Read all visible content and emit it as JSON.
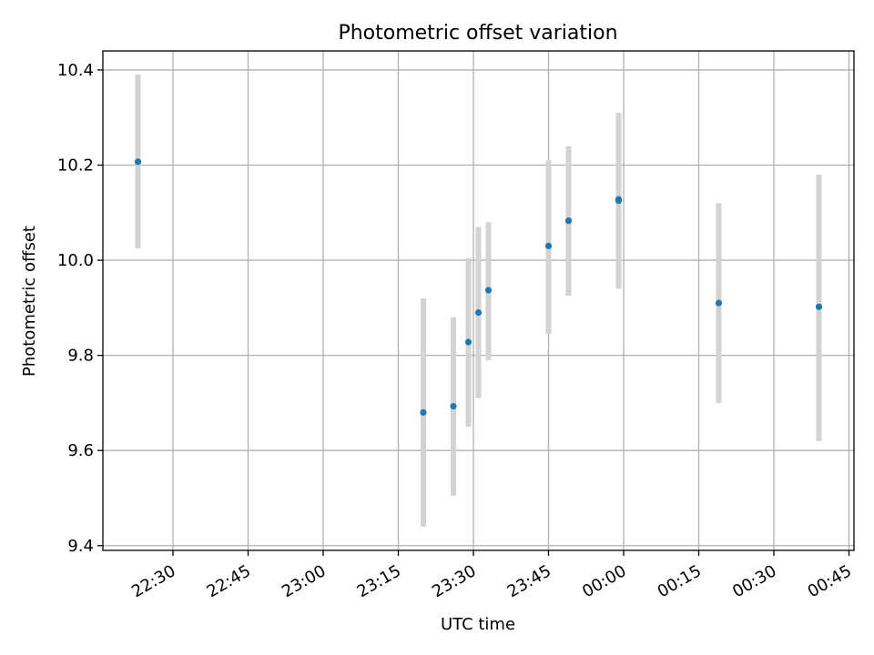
{
  "chart_data": {
    "type": "scatter",
    "title": "Photometric offset variation",
    "xlabel": "UTC time",
    "ylabel": "Photometric offset",
    "grid": true,
    "legend": "none",
    "x_tick_labels": [
      "22:30",
      "22:45",
      "23:00",
      "23:15",
      "23:30",
      "23:45",
      "00:00",
      "00:15",
      "00:30",
      "00:45"
    ],
    "x_ticks": [
      "22:30",
      "22:45",
      "23:00",
      "23:15",
      "23:30",
      "23:45",
      "00:00",
      "00:15",
      "00:30",
      "00:45"
    ],
    "y_tick_labels": [
      "9.4",
      "9.6",
      "9.8",
      "10.0",
      "10.2",
      "10.4"
    ],
    "y_ticks": [
      9.4,
      9.6,
      9.8,
      10.0,
      10.2,
      10.4
    ],
    "xlim": [
      "22:16",
      "00:46"
    ],
    "ylim": [
      9.39,
      10.44
    ],
    "marker_color": "#1f77b4",
    "errorbar_color": "#d3d3d3",
    "points": [
      {
        "x": "22:23",
        "y": 10.207,
        "yerr_low": 10.025,
        "yerr_high": 10.39
      },
      {
        "x": "23:20",
        "y": 9.68,
        "yerr_low": 9.44,
        "yerr_high": 9.92
      },
      {
        "x": "23:26",
        "y": 9.693,
        "yerr_low": 9.505,
        "yerr_high": 9.88
      },
      {
        "x": "23:29",
        "y": 9.828,
        "yerr_low": 9.65,
        "yerr_high": 10.005
      },
      {
        "x": "23:31",
        "y": 9.89,
        "yerr_low": 9.71,
        "yerr_high": 10.07
      },
      {
        "x": "23:33",
        "y": 9.937,
        "yerr_low": 9.79,
        "yerr_high": 10.08
      },
      {
        "x": "23:45",
        "y": 10.03,
        "yerr_low": 9.845,
        "yerr_high": 10.21
      },
      {
        "x": "23:49",
        "y": 10.083,
        "yerr_low": 9.925,
        "yerr_high": 10.24
      },
      {
        "x": "23:59",
        "y": 10.125,
        "yerr_low": 9.94,
        "yerr_high": 10.31
      },
      {
        "x": "23:59",
        "y": 10.128,
        "yerr_low": 9.94,
        "yerr_high": 10.31
      },
      {
        "x": "00:19",
        "y": 9.91,
        "yerr_low": 9.7,
        "yerr_high": 10.12
      },
      {
        "x": "00:39",
        "y": 9.902,
        "yerr_low": 9.62,
        "yerr_high": 10.18
      }
    ]
  }
}
